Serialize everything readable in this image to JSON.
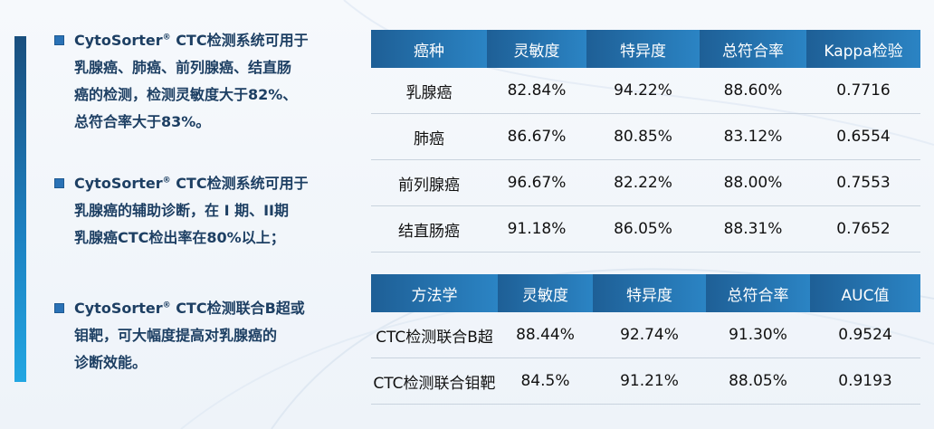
{
  "bullets": [
    {
      "brand": "CytoSorter",
      "reg": "®",
      "lines": [
        "CTC检测系统可用于",
        "乳腺癌、肺癌、前列腺癌、结直肠",
        "癌的检测，检测灵敏度大于82%、",
        "总符合率大于83%。"
      ]
    },
    {
      "brand": "CytoSorter",
      "reg": "®",
      "lines": [
        "CTC检测系统可用于",
        "乳腺癌的辅助诊断，在 I 期、II期",
        "乳腺癌CTC检出率在80%以上；"
      ]
    },
    {
      "brand": "CytoSorter",
      "reg": "®",
      "lines": [
        "CTC检测联合B超或",
        "钼靶，可大幅度提高对乳腺癌的",
        "诊断效能。"
      ]
    }
  ],
  "table1": {
    "headers": [
      "癌种",
      "灵敏度",
      "特异度",
      "总符合率",
      "Kappa检验"
    ],
    "rows": [
      [
        "乳腺癌",
        "82.84%",
        "94.22%",
        "88.60%",
        "0.7716"
      ],
      [
        "肺癌",
        "86.67%",
        "80.85%",
        "83.12%",
        "0.6554"
      ],
      [
        "前列腺癌",
        "96.67%",
        "82.22%",
        "88.00%",
        "0.7553"
      ],
      [
        "结直肠癌",
        "91.18%",
        "86.05%",
        "88.31%",
        "0.7652"
      ]
    ]
  },
  "table2": {
    "headers": [
      "方法学",
      "灵敏度",
      "特异度",
      "总符合率",
      "AUC值"
    ],
    "rows": [
      [
        "CTC检测联合B超",
        "88.44%",
        "92.74%",
        "91.30%",
        "0.9524"
      ],
      [
        "CTC检测联合钼靶",
        "84.5%",
        "91.21%",
        "88.05%",
        "0.9193"
      ]
    ]
  },
  "colors": {
    "accent": "#2b84c4",
    "text_dark": "#1d3f63"
  }
}
